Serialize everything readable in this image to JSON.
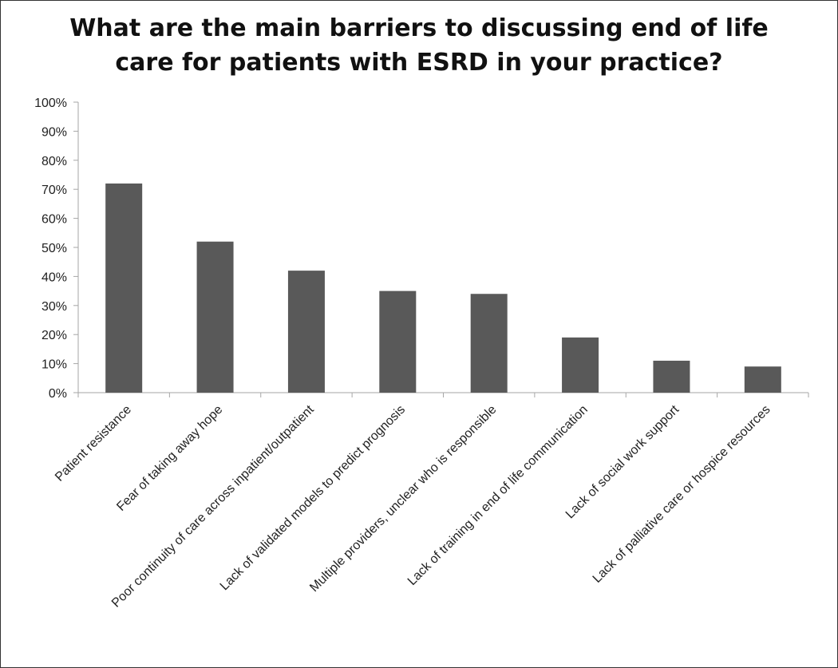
{
  "chart_data": {
    "type": "bar",
    "title_lines": [
      "What are the main barriers to discussing end of life",
      "care for patients with ESRD in your practice?"
    ],
    "categories": [
      "Patient resistance",
      "Fear of taking away hope",
      "Poor continuity of care across inpatient/outpatient",
      "Lack of validated models to predict prognosis",
      "Multiple providers, unclear who is responsible",
      "Lack of training in end of life communication",
      "Lack of social work support",
      "Lack of palliative care or hospice resources"
    ],
    "values": [
      72,
      52,
      42,
      35,
      34,
      19,
      11,
      9
    ],
    "ylim": [
      0,
      100
    ],
    "yticks": [
      0,
      10,
      20,
      30,
      40,
      50,
      60,
      70,
      80,
      90,
      100
    ],
    "ytick_labels": [
      "0%",
      "10%",
      "20%",
      "30%",
      "40%",
      "50%",
      "60%",
      "70%",
      "80%",
      "90%",
      "100%"
    ],
    "grid": false,
    "bar_color": "#595959",
    "axis_color": "#a6a6a6"
  }
}
